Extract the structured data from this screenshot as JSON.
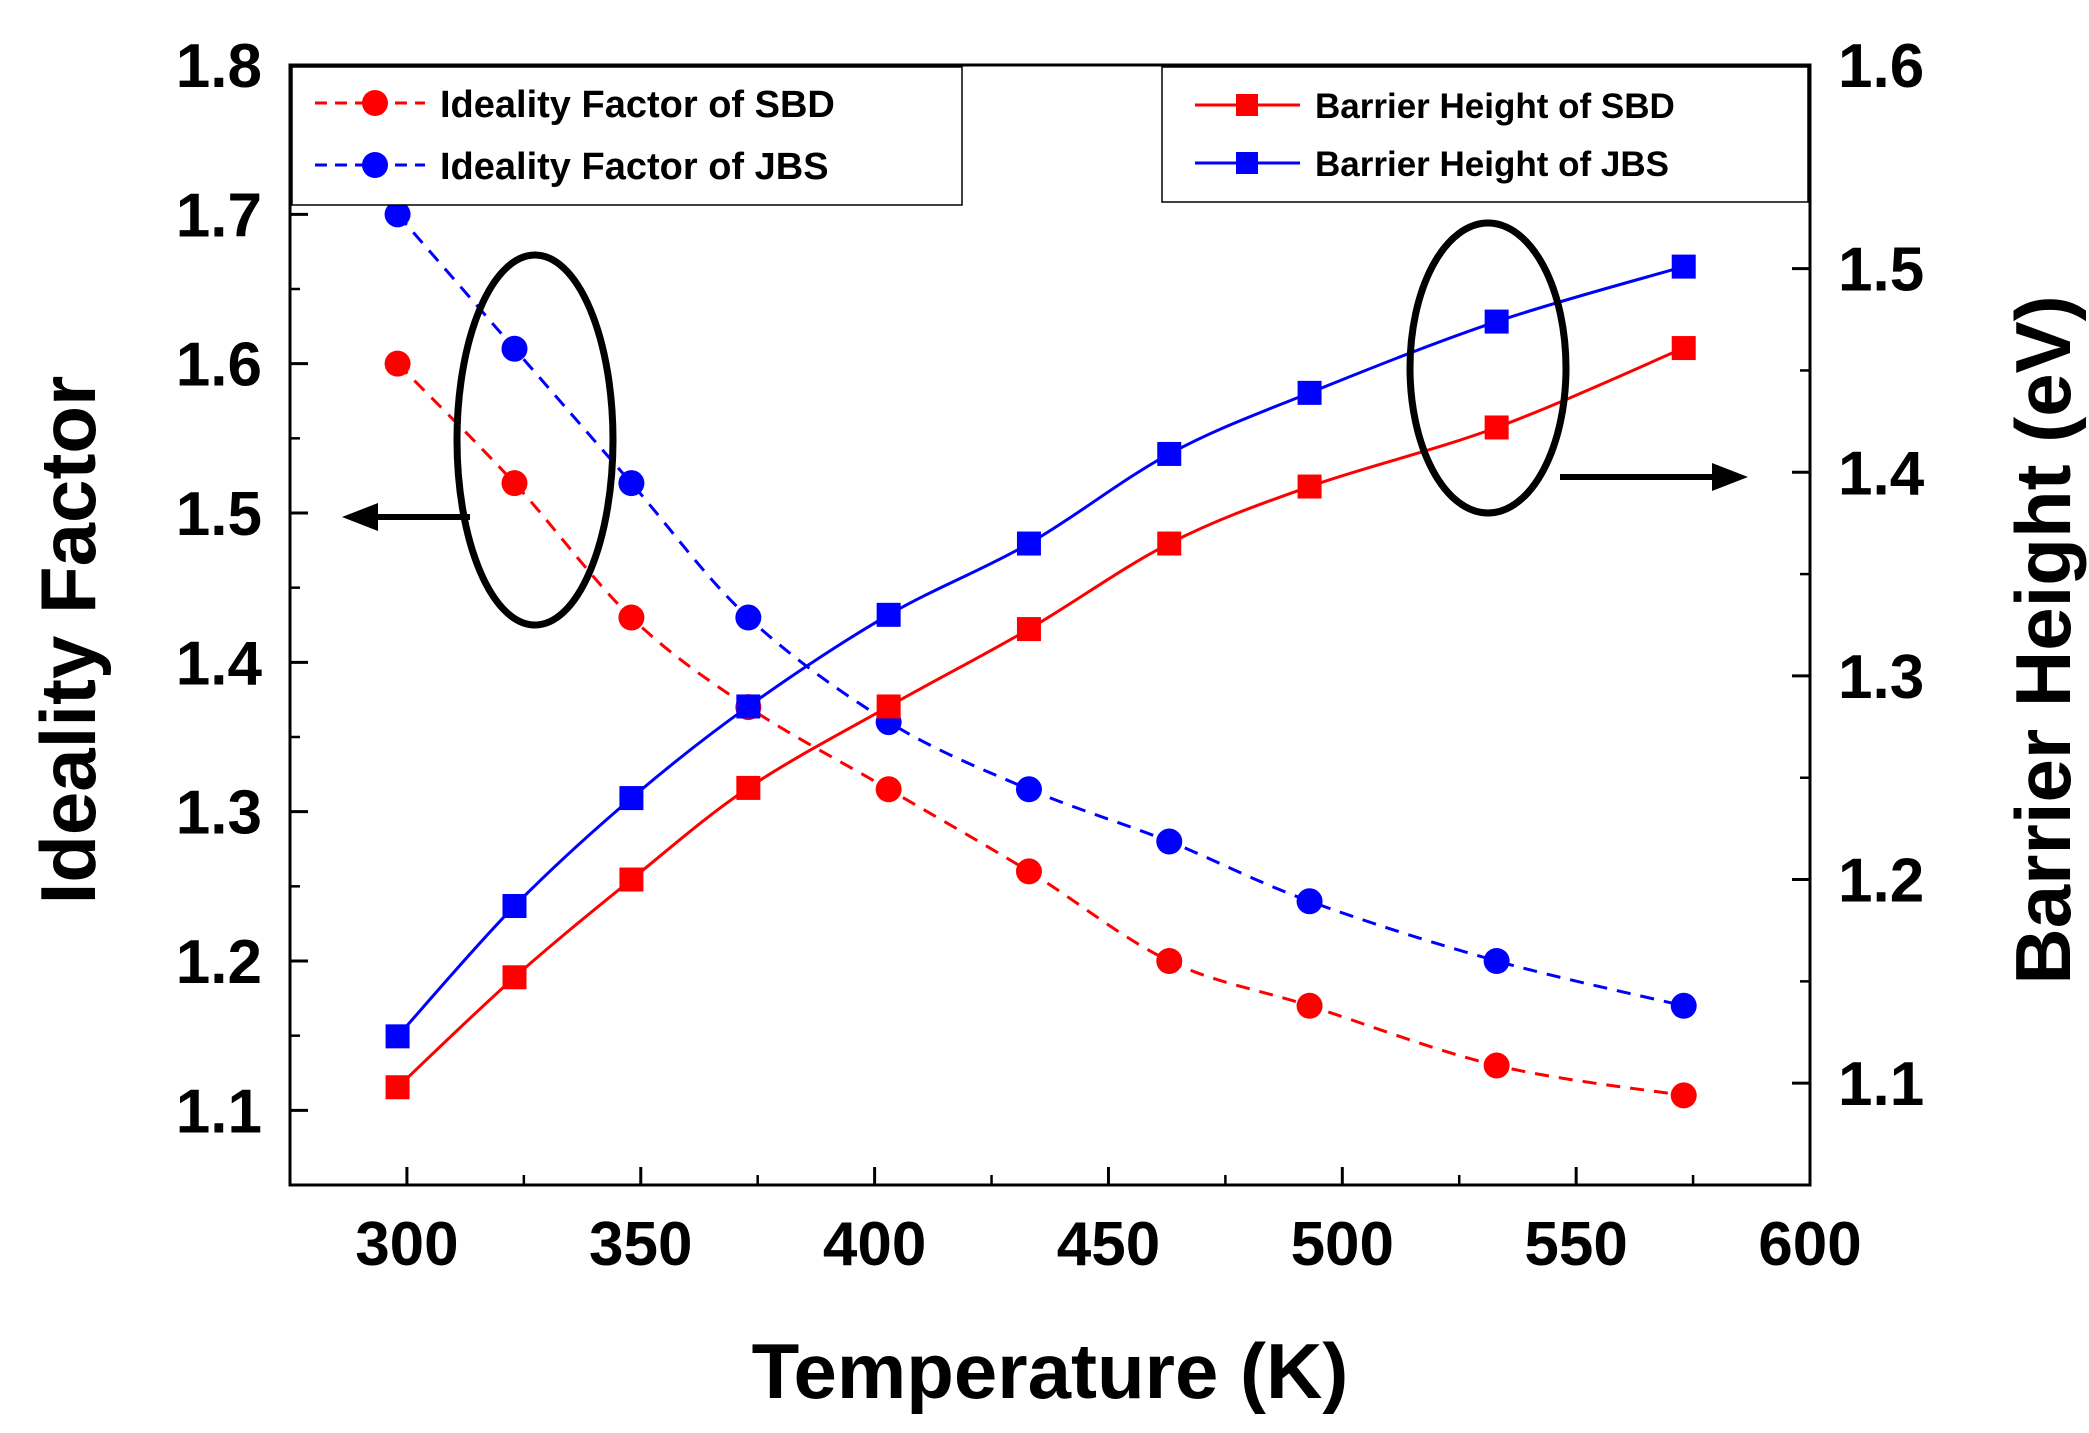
{
  "chart_data": {
    "type": "line",
    "title": "",
    "xlabel": "Temperature (K)",
    "ylabel_left": "Ideality Factor",
    "ylabel_right": "Barrier Height (eV)",
    "xlim": [
      275,
      600
    ],
    "ylim_left": [
      1.05,
      1.8
    ],
    "ylim_right": [
      1.05,
      1.6
    ],
    "xticks": [
      "300",
      "350",
      "400",
      "450",
      "500",
      "550",
      "600"
    ],
    "yticks_left": [
      "1.1",
      "1.2",
      "1.3",
      "1.4",
      "1.5",
      "1.6",
      "1.7",
      "1.8"
    ],
    "yticks_right": [
      "1.1",
      "1.2",
      "1.3",
      "1.4",
      "1.5",
      "1.6"
    ],
    "grid": false,
    "series": [
      {
        "name": "Ideality Factor of SBD",
        "axis": "left",
        "color": "#ff0000",
        "line_style": "dashed",
        "marker": "circle",
        "x": [
          298,
          323,
          348,
          373,
          403,
          433,
          463,
          493,
          533,
          573
        ],
        "y": [
          1.6,
          1.52,
          1.43,
          1.37,
          1.315,
          1.26,
          1.2,
          1.17,
          1.13,
          1.11
        ]
      },
      {
        "name": "Ideality Factor of JBS",
        "axis": "left",
        "color": "#0000ff",
        "line_style": "dashed",
        "marker": "circle",
        "x": [
          298,
          323,
          348,
          373,
          403,
          433,
          463,
          493,
          533,
          573
        ],
        "y": [
          1.7,
          1.61,
          1.52,
          1.43,
          1.36,
          1.315,
          1.28,
          1.24,
          1.2,
          1.17
        ]
      },
      {
        "name": "Barrier Height of SBD",
        "axis": "right",
        "color": "#ff0000",
        "line_style": "solid",
        "marker": "square",
        "x": [
          298,
          323,
          348,
          373,
          403,
          433,
          463,
          493,
          533,
          573
        ],
        "y": [
          1.098,
          1.152,
          1.2,
          1.245,
          1.285,
          1.323,
          1.365,
          1.393,
          1.422,
          1.461
        ]
      },
      {
        "name": "Barrier Height of JBS",
        "axis": "right",
        "color": "#0000ff",
        "line_style": "solid",
        "marker": "square",
        "x": [
          298,
          323,
          348,
          373,
          403,
          433,
          463,
          493,
          533,
          573
        ],
        "y": [
          1.123,
          1.187,
          1.24,
          1.285,
          1.33,
          1.365,
          1.409,
          1.439,
          1.474,
          1.501
        ]
      }
    ],
    "legend_left": [
      "Ideality Factor of SBD",
      "Ideality Factor of JBS"
    ],
    "legend_right": [
      "Barrier Height of SBD",
      "Barrier Height of JBS"
    ],
    "annotations": [
      "ellipse with arrow pointing to left axis",
      "ellipse with arrow pointing to right axis"
    ]
  }
}
